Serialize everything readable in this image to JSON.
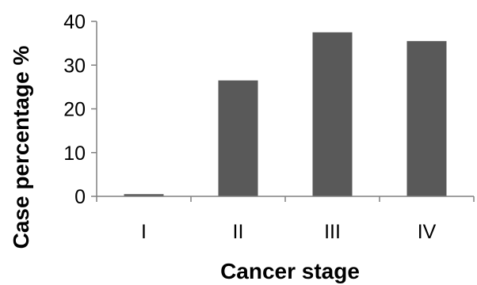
{
  "chart_data": {
    "type": "bar",
    "title": "",
    "xlabel": "Cancer stage",
    "ylabel": "Case percentage %",
    "categories": [
      "I",
      "II",
      "III",
      "IV"
    ],
    "values": [
      0.5,
      26.5,
      37.5,
      35.5
    ],
    "ylim": [
      0,
      40
    ],
    "yticks": [
      "0",
      "10",
      "20",
      "30",
      "40"
    ],
    "bar_color": "#595959",
    "grid": false,
    "legend": "none"
  }
}
